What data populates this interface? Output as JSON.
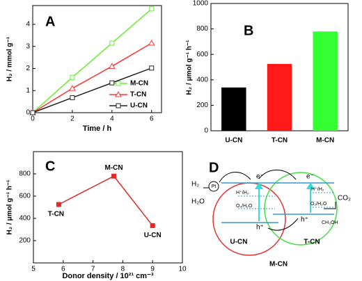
{
  "chart_data": [
    {
      "type": "line",
      "panel": "A",
      "x_label": "Time / h",
      "y_label": "H₂ / mmol g⁻¹",
      "x": [
        0,
        2,
        4,
        6
      ],
      "xlim": [
        0,
        6.5
      ],
      "xticks": [
        0,
        2,
        4,
        6
      ],
      "ylim": [
        0,
        4.85
      ],
      "yticks": [
        0,
        1,
        2,
        3,
        4
      ],
      "legend": "lower right",
      "series": [
        {
          "name": "M-CN",
          "color": "#66ee33",
          "marker": "square",
          "values": [
            0,
            1.6,
            3.15,
            4.7
          ]
        },
        {
          "name": "T-CN",
          "color": "#ff3333",
          "marker": "triangle",
          "values": [
            0,
            1.1,
            2.1,
            3.15
          ]
        },
        {
          "name": "U-CN",
          "color": "#222222",
          "marker": "square",
          "values": [
            0,
            0.68,
            1.35,
            2.02
          ]
        }
      ]
    },
    {
      "type": "bar",
      "panel": "B",
      "y_label": "H₂ / μmol g⁻¹ h⁻¹",
      "categories": [
        "U-CN",
        "T-CN",
        "M-CN"
      ],
      "values": [
        340,
        525,
        780
      ],
      "colors": [
        "#000000",
        "#ff1a1a",
        "#33ff33"
      ],
      "ylim": [
        0,
        1000
      ],
      "yticks": [
        0,
        200,
        400,
        600,
        800,
        1000
      ]
    },
    {
      "type": "line",
      "panel": "C",
      "x_label": "Donor density / 10²¹ cm⁻³",
      "y_label": "H₂ / μmol g⁻¹ h⁻¹",
      "x": [
        5.85,
        7.7,
        9
      ],
      "xlim": [
        5,
        10
      ],
      "xticks": [
        5,
        6,
        7,
        8,
        9,
        10
      ],
      "ylim": [
        0,
        1000
      ],
      "yticks": [
        200,
        400,
        600,
        800
      ],
      "series": [
        {
          "color": "#e02828",
          "marker": "square",
          "values": [
            525,
            780,
            335
          ],
          "point_labels": [
            "T-CN",
            "M-CN",
            "U-CN"
          ]
        }
      ]
    }
  ],
  "diagram": {
    "panel": "D",
    "pt": "Pt",
    "e_left": "e⁻",
    "e_right": "e⁻",
    "h2": "H₂",
    "h2o": "H₂O",
    "redox_left_top": "H⁺/H₂",
    "redox_left_bottom": "O₂/H₂O",
    "redox_right_top": "H⁺/H₂",
    "redox_right_bottom": "O₂/H₂O",
    "co2": "CO₂",
    "ch3oh": "CH₃OH",
    "h_left": "h⁺",
    "h_right": "h⁺",
    "left_name": "U-CN",
    "right_name": "T-CN",
    "name": "M-CN"
  }
}
